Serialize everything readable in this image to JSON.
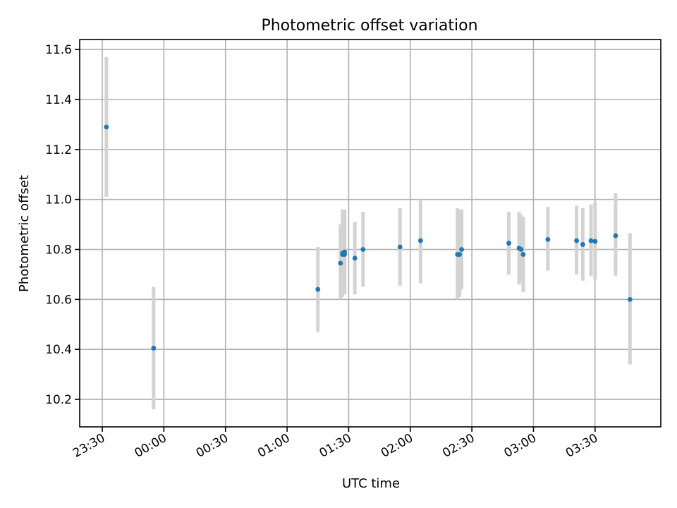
{
  "chart_data": {
    "type": "scatter",
    "title": "Photometric offset variation",
    "xlabel": "UTC time",
    "ylabel": "Photometric offset",
    "x_ticks": [
      "23:30",
      "00:00",
      "00:30",
      "01:00",
      "01:30",
      "02:00",
      "02:30",
      "03:00",
      "03:30"
    ],
    "y_ticks": [
      "10.2",
      "10.4",
      "10.6",
      "10.8",
      "11.0",
      "11.2",
      "11.4",
      "11.6"
    ],
    "xlim": [
      "23:19",
      "04:02"
    ],
    "ylim": [
      10.09,
      11.64
    ],
    "grid": true,
    "error_bar_color": "#d3d3d3",
    "point_color": "#1f77b4",
    "points": [
      {
        "x": "23:32",
        "y": 11.29,
        "ylow": 11.01,
        "yhigh": 11.57
      },
      {
        "x": "23:55",
        "y": 10.405,
        "ylow": 10.16,
        "yhigh": 10.65
      },
      {
        "x": "01:15",
        "y": 10.64,
        "ylow": 10.47,
        "yhigh": 10.81
      },
      {
        "x": "01:26",
        "y": 10.745,
        "ylow": 10.6,
        "yhigh": 10.9
      },
      {
        "x": "01:27",
        "y": 10.78,
        "ylow": 10.61,
        "yhigh": 10.92
      },
      {
        "x": "01:27",
        "y": 10.785,
        "ylow": 10.62,
        "yhigh": 10.96
      },
      {
        "x": "01:28",
        "y": 10.79,
        "ylow": 10.62,
        "yhigh": 10.96
      },
      {
        "x": "01:28",
        "y": 10.78,
        "ylow": 10.63,
        "yhigh": 10.955
      },
      {
        "x": "01:33",
        "y": 10.765,
        "ylow": 10.62,
        "yhigh": 10.91
      },
      {
        "x": "01:37",
        "y": 10.8,
        "ylow": 10.65,
        "yhigh": 10.95
      },
      {
        "x": "01:55",
        "y": 10.81,
        "ylow": 10.655,
        "yhigh": 10.965
      },
      {
        "x": "02:05",
        "y": 10.835,
        "ylow": 10.665,
        "yhigh": 11.0
      },
      {
        "x": "02:23",
        "y": 10.78,
        "ylow": 10.6,
        "yhigh": 10.965
      },
      {
        "x": "02:24",
        "y": 10.78,
        "ylow": 10.61,
        "yhigh": 10.96
      },
      {
        "x": "02:25",
        "y": 10.8,
        "ylow": 10.64,
        "yhigh": 10.96
      },
      {
        "x": "02:48",
        "y": 10.825,
        "ylow": 10.7,
        "yhigh": 10.95
      },
      {
        "x": "02:53",
        "y": 10.805,
        "ylow": 10.66,
        "yhigh": 10.95
      },
      {
        "x": "02:54",
        "y": 10.8,
        "ylow": 10.67,
        "yhigh": 10.94
      },
      {
        "x": "02:55",
        "y": 10.78,
        "ylow": 10.63,
        "yhigh": 10.93
      },
      {
        "x": "03:07",
        "y": 10.84,
        "ylow": 10.715,
        "yhigh": 10.97
      },
      {
        "x": "03:21",
        "y": 10.835,
        "ylow": 10.7,
        "yhigh": 10.975
      },
      {
        "x": "03:24",
        "y": 10.82,
        "ylow": 10.675,
        "yhigh": 10.965
      },
      {
        "x": "03:28",
        "y": 10.835,
        "ylow": 10.695,
        "yhigh": 10.98
      },
      {
        "x": "03:30",
        "y": 10.832,
        "ylow": 10.68,
        "yhigh": 10.99
      },
      {
        "x": "03:40",
        "y": 10.855,
        "ylow": 10.695,
        "yhigh": 11.025
      },
      {
        "x": "03:47",
        "y": 10.6,
        "ylow": 10.34,
        "yhigh": 10.865
      }
    ]
  }
}
